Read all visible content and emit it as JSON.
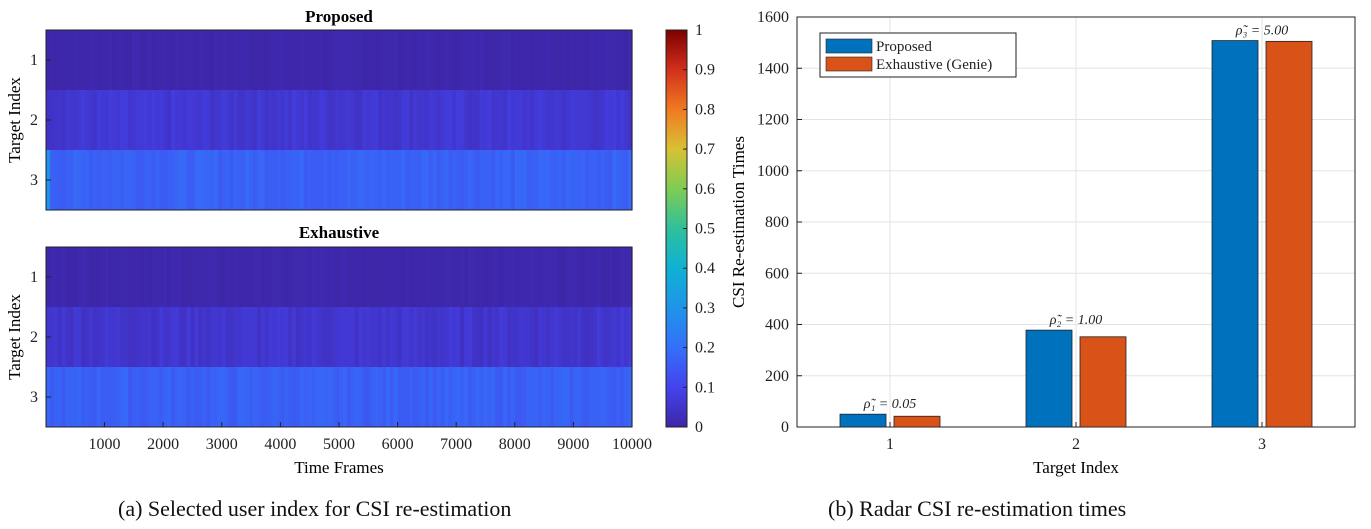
{
  "chart_data": [
    {
      "type": "heatmap",
      "title": "Proposed",
      "ylabel": "Target Index",
      "xlabel": "",
      "y_categories": [
        "1",
        "2",
        "3"
      ],
      "xlim": [
        1,
        10000
      ],
      "row_base_values": [
        0.005,
        0.06,
        0.17
      ],
      "colormap": "parula"
    },
    {
      "type": "heatmap",
      "title": "Exhaustive",
      "ylabel": "Target Index",
      "xlabel": "Time Frames",
      "y_categories": [
        "1",
        "2",
        "3"
      ],
      "xlim": [
        1,
        10000
      ],
      "x_ticks": [
        "1000",
        "2000",
        "3000",
        "4000",
        "5000",
        "6000",
        "7000",
        "8000",
        "9000",
        "10000"
      ],
      "row_base_values": [
        0.005,
        0.055,
        0.165
      ],
      "colormap": "parula"
    },
    {
      "type": "colorbar",
      "ticks": [
        "0",
        "0.1",
        "0.2",
        "0.3",
        "0.4",
        "0.5",
        "0.6",
        "0.7",
        "0.8",
        "0.9",
        "1"
      ],
      "range": [
        0,
        1
      ]
    },
    {
      "type": "bar",
      "xlabel": "Target Index",
      "ylabel": "CSI Re-estimation Times",
      "categories": [
        "1",
        "2",
        "3"
      ],
      "ylim": [
        0,
        1600
      ],
      "y_ticks": [
        "0",
        "200",
        "400",
        "600",
        "800",
        "1000",
        "1200",
        "1400",
        "1600"
      ],
      "grid": true,
      "legend_position": "top-left",
      "series": [
        {
          "name": "Proposed",
          "color": "#0072bd",
          "values": [
            50,
            378,
            1508
          ]
        },
        {
          "name": "Exhaustive (Genie)",
          "color": "#d95319",
          "values": [
            42,
            352,
            1505
          ]
        }
      ],
      "annotations": [
        {
          "label": "ρ̃₁ = 0.05",
          "category": "1"
        },
        {
          "label": "ρ̃₂ = 1.00",
          "category": "2"
        },
        {
          "label": "ρ̃₃ = 5.00",
          "category": "3"
        }
      ]
    }
  ],
  "captions": {
    "left": "(a) Selected user index for CSI re-estimation",
    "right": "(b) Radar CSI re-estimation times"
  }
}
